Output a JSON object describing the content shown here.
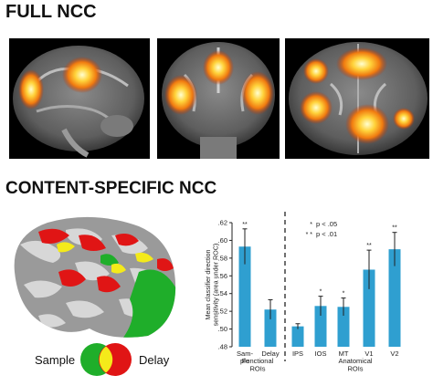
{
  "headings": {
    "full": "FULL NCC",
    "content": "CONTENT-SPECIFIC NCC"
  },
  "legend": {
    "sample": "Sample",
    "delay": "Delay",
    "colors": {
      "sample": "#1fae2a",
      "delay": "#e01515",
      "overlap": "#f4ea1a"
    }
  },
  "chart_data": {
    "type": "bar",
    "ylabel": "Mean classifier direction sensitivity (area under ROC)",
    "ylim": [
      0.48,
      0.62
    ],
    "yticks": [
      ".48",
      ".50",
      ".52",
      ".54",
      ".56",
      ".58",
      ".60",
      ".62"
    ],
    "categories": [
      "Sam-\nple",
      "Delay",
      "IPS",
      "IOS",
      "MT",
      "V1",
      "V2"
    ],
    "values": [
      0.593,
      0.522,
      0.503,
      0.526,
      0.525,
      0.567,
      0.59
    ],
    "errors": [
      0.02,
      0.011,
      0.003,
      0.011,
      0.01,
      0.022,
      0.019
    ],
    "significance": [
      "**",
      "",
      "",
      "*",
      "*",
      "**",
      "**"
    ],
    "groups": [
      {
        "label": "Functional\nROIs"
      },
      {
        "label": "Anatomical\nROIs"
      }
    ],
    "key": [
      {
        "marker": "*",
        "text": "p < .05"
      },
      {
        "marker": "* *",
        "text": "p < .01"
      }
    ],
    "bar_color": "#2f9fd0",
    "grid": false
  }
}
